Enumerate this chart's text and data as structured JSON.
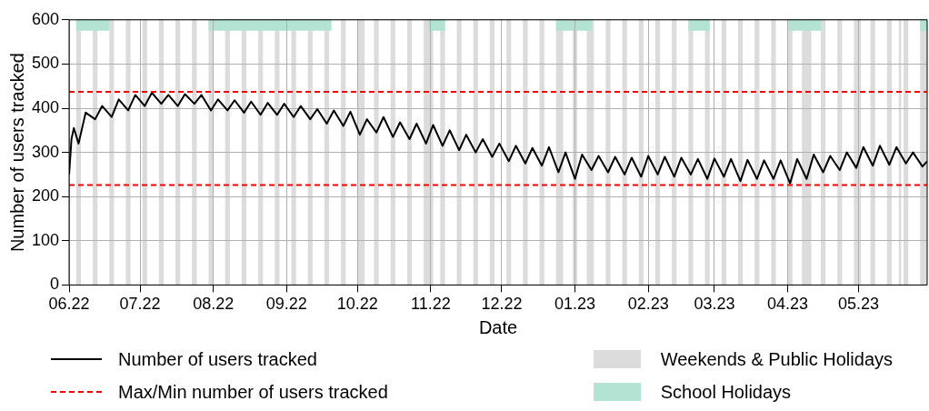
{
  "chart_data": {
    "type": "line",
    "xlabel": "Date",
    "ylabel": "Number of users tracked",
    "xlim": [
      "2022-06-01",
      "2023-05-30"
    ],
    "ylim": [
      0,
      600
    ],
    "yticks": [
      0,
      100,
      200,
      300,
      400,
      500,
      600
    ],
    "xticks": [
      {
        "value": "2022-06-01",
        "label": "06.22"
      },
      {
        "value": "2022-07-01",
        "label": "07.22"
      },
      {
        "value": "2022-08-01",
        "label": "08.22"
      },
      {
        "value": "2022-09-01",
        "label": "09.22"
      },
      {
        "value": "2022-10-01",
        "label": "10.22"
      },
      {
        "value": "2022-11-01",
        "label": "11.22"
      },
      {
        "value": "2022-12-01",
        "label": "12.22"
      },
      {
        "value": "2023-01-01",
        "label": "01.23"
      },
      {
        "value": "2023-02-01",
        "label": "02.23"
      },
      {
        "value": "2023-03-01",
        "label": "03.23"
      },
      {
        "value": "2023-04-01",
        "label": "04.23"
      },
      {
        "value": "2023-05-01",
        "label": "05.23"
      }
    ],
    "grid": true,
    "legend": "bottom",
    "marker": "none",
    "line_style": "solid",
    "series": [
      {
        "name": "Number of users tracked",
        "color": "#000000",
        "x": [
          "2022-06-01",
          "2022-06-02",
          "2022-06-03",
          "2022-06-05",
          "2022-06-08",
          "2022-06-12",
          "2022-06-15",
          "2022-06-19",
          "2022-06-22",
          "2022-06-26",
          "2022-06-29",
          "2022-07-03",
          "2022-07-06",
          "2022-07-10",
          "2022-07-13",
          "2022-07-17",
          "2022-07-20",
          "2022-07-24",
          "2022-07-27",
          "2022-07-31",
          "2022-08-03",
          "2022-08-07",
          "2022-08-10",
          "2022-08-14",
          "2022-08-17",
          "2022-08-21",
          "2022-08-24",
          "2022-08-28",
          "2022-08-31",
          "2022-09-04",
          "2022-09-07",
          "2022-09-11",
          "2022-09-14",
          "2022-09-18",
          "2022-09-21",
          "2022-09-25",
          "2022-09-28",
          "2022-10-02",
          "2022-10-05",
          "2022-10-09",
          "2022-10-12",
          "2022-10-16",
          "2022-10-19",
          "2022-10-23",
          "2022-10-26",
          "2022-10-30",
          "2022-11-02",
          "2022-11-06",
          "2022-11-09",
          "2022-11-13",
          "2022-11-16",
          "2022-11-20",
          "2022-11-23",
          "2022-11-27",
          "2022-11-30",
          "2022-12-04",
          "2022-12-07",
          "2022-12-11",
          "2022-12-14",
          "2022-12-18",
          "2022-12-21",
          "2022-12-25",
          "2022-12-28",
          "2023-01-01",
          "2023-01-04",
          "2023-01-08",
          "2023-01-11",
          "2023-01-15",
          "2023-01-18",
          "2023-01-22",
          "2023-01-25",
          "2023-01-29",
          "2023-02-01",
          "2023-02-05",
          "2023-02-08",
          "2023-02-12",
          "2023-02-15",
          "2023-02-19",
          "2023-02-22",
          "2023-02-26",
          "2023-03-01",
          "2023-03-05",
          "2023-03-08",
          "2023-03-12",
          "2023-03-15",
          "2023-03-19",
          "2023-03-22",
          "2023-03-26",
          "2023-03-29",
          "2023-04-02",
          "2023-04-05",
          "2023-04-09",
          "2023-04-12",
          "2023-04-16",
          "2023-04-19",
          "2023-04-23",
          "2023-04-26",
          "2023-04-30",
          "2023-05-03",
          "2023-05-07",
          "2023-05-10",
          "2023-05-14",
          "2023-05-17",
          "2023-05-21",
          "2023-05-24",
          "2023-05-28",
          "2023-05-30"
        ],
        "values": [
          250,
          330,
          355,
          320,
          390,
          375,
          405,
          380,
          420,
          395,
          430,
          405,
          435,
          410,
          430,
          405,
          432,
          410,
          430,
          395,
          420,
          395,
          418,
          390,
          415,
          385,
          412,
          385,
          410,
          380,
          405,
          375,
          398,
          365,
          395,
          360,
          392,
          340,
          375,
          345,
          380,
          335,
          368,
          330,
          365,
          320,
          362,
          315,
          350,
          305,
          340,
          300,
          330,
          290,
          320,
          280,
          315,
          275,
          310,
          270,
          312,
          255,
          300,
          240,
          295,
          260,
          292,
          255,
          290,
          250,
          288,
          245,
          292,
          250,
          290,
          245,
          288,
          250,
          285,
          240,
          286,
          245,
          285,
          235,
          283,
          240,
          282,
          240,
          282,
          230,
          285,
          240,
          295,
          255,
          292,
          260,
          300,
          265,
          312,
          270,
          315,
          272,
          312,
          275,
          300,
          268,
          280
        ]
      }
    ],
    "ref_lines": [
      {
        "axis": "y",
        "value": 437,
        "label": "Max/Min number of users tracked",
        "color": "#ff0000",
        "line_style": "dashed"
      },
      {
        "axis": "y",
        "value": 226,
        "color": "#ff0000",
        "line_style": "dashed"
      }
    ],
    "bands": [
      {
        "axis": "x",
        "from": "2022-06-04",
        "to": "2022-06-06",
        "label": "Weekends & Public Holidays",
        "color": "#dcdcdc"
      },
      {
        "axis": "x",
        "from": "2022-06-11",
        "to": "2022-06-13",
        "color": "#dcdcdc"
      },
      {
        "axis": "x",
        "from": "2022-06-18",
        "to": "2022-06-20",
        "color": "#dcdcdc"
      },
      {
        "axis": "x",
        "from": "2022-06-25",
        "to": "2022-06-27",
        "color": "#dcdcdc"
      },
      {
        "axis": "x",
        "from": "2022-07-02",
        "to": "2022-07-04",
        "color": "#dcdcdc"
      },
      {
        "axis": "x",
        "from": "2022-07-09",
        "to": "2022-07-11",
        "color": "#dcdcdc"
      },
      {
        "axis": "x",
        "from": "2022-07-16",
        "to": "2022-07-18",
        "color": "#dcdcdc"
      },
      {
        "axis": "x",
        "from": "2022-07-23",
        "to": "2022-07-25",
        "color": "#dcdcdc"
      },
      {
        "axis": "x",
        "from": "2022-07-30",
        "to": "2022-08-01",
        "color": "#dcdcdc"
      },
      {
        "axis": "x",
        "from": "2022-08-06",
        "to": "2022-08-08",
        "color": "#dcdcdc"
      },
      {
        "axis": "x",
        "from": "2022-08-13",
        "to": "2022-08-15",
        "color": "#dcdcdc"
      },
      {
        "axis": "x",
        "from": "2022-08-20",
        "to": "2022-08-22",
        "color": "#dcdcdc"
      },
      {
        "axis": "x",
        "from": "2022-08-27",
        "to": "2022-08-29",
        "color": "#dcdcdc"
      },
      {
        "axis": "x",
        "from": "2022-09-03",
        "to": "2022-09-05",
        "color": "#dcdcdc"
      },
      {
        "axis": "x",
        "from": "2022-09-10",
        "to": "2022-09-12",
        "color": "#dcdcdc"
      },
      {
        "axis": "x",
        "from": "2022-09-17",
        "to": "2022-09-19",
        "color": "#dcdcdc"
      },
      {
        "axis": "x",
        "from": "2022-09-24",
        "to": "2022-09-26",
        "color": "#dcdcdc"
      },
      {
        "axis": "x",
        "from": "2022-10-01",
        "to": "2022-10-04",
        "color": "#dcdcdc"
      },
      {
        "axis": "x",
        "from": "2022-10-08",
        "to": "2022-10-10",
        "color": "#dcdcdc"
      },
      {
        "axis": "x",
        "from": "2022-10-15",
        "to": "2022-10-17",
        "color": "#dcdcdc"
      },
      {
        "axis": "x",
        "from": "2022-10-22",
        "to": "2022-10-24",
        "color": "#dcdcdc"
      },
      {
        "axis": "x",
        "from": "2022-10-29",
        "to": "2022-11-02",
        "color": "#dcdcdc"
      },
      {
        "axis": "x",
        "from": "2022-11-05",
        "to": "2022-11-07",
        "color": "#dcdcdc"
      },
      {
        "axis": "x",
        "from": "2022-11-12",
        "to": "2022-11-14",
        "color": "#dcdcdc"
      },
      {
        "axis": "x",
        "from": "2022-11-19",
        "to": "2022-11-21",
        "color": "#dcdcdc"
      },
      {
        "axis": "x",
        "from": "2022-11-26",
        "to": "2022-11-28",
        "color": "#dcdcdc"
      },
      {
        "axis": "x",
        "from": "2022-12-03",
        "to": "2022-12-05",
        "color": "#dcdcdc"
      },
      {
        "axis": "x",
        "from": "2022-12-10",
        "to": "2022-12-12",
        "color": "#dcdcdc"
      },
      {
        "axis": "x",
        "from": "2022-12-17",
        "to": "2022-12-19",
        "color": "#dcdcdc"
      },
      {
        "axis": "x",
        "from": "2022-12-24",
        "to": "2022-12-27",
        "color": "#dcdcdc"
      },
      {
        "axis": "x",
        "from": "2022-12-31",
        "to": "2023-01-02",
        "color": "#dcdcdc"
      },
      {
        "axis": "x",
        "from": "2023-01-06",
        "to": "2023-01-09",
        "color": "#dcdcdc"
      },
      {
        "axis": "x",
        "from": "2023-01-14",
        "to": "2023-01-16",
        "color": "#dcdcdc"
      },
      {
        "axis": "x",
        "from": "2023-01-21",
        "to": "2023-01-23",
        "color": "#dcdcdc"
      },
      {
        "axis": "x",
        "from": "2023-01-28",
        "to": "2023-01-30",
        "color": "#dcdcdc"
      },
      {
        "axis": "x",
        "from": "2023-02-04",
        "to": "2023-02-06",
        "color": "#dcdcdc"
      },
      {
        "axis": "x",
        "from": "2023-02-11",
        "to": "2023-02-13",
        "color": "#dcdcdc"
      },
      {
        "axis": "x",
        "from": "2023-02-18",
        "to": "2023-02-20",
        "color": "#dcdcdc"
      },
      {
        "axis": "x",
        "from": "2023-02-25",
        "to": "2023-02-27",
        "color": "#dcdcdc"
      },
      {
        "axis": "x",
        "from": "2023-03-04",
        "to": "2023-03-06",
        "color": "#dcdcdc"
      },
      {
        "axis": "x",
        "from": "2023-03-11",
        "to": "2023-03-13",
        "color": "#dcdcdc"
      },
      {
        "axis": "x",
        "from": "2023-03-18",
        "to": "2023-03-20",
        "color": "#dcdcdc"
      },
      {
        "axis": "x",
        "from": "2023-03-25",
        "to": "2023-03-27",
        "color": "#dcdcdc"
      },
      {
        "axis": "x",
        "from": "2023-04-01",
        "to": "2023-04-03",
        "color": "#dcdcdc"
      },
      {
        "axis": "x",
        "from": "2023-04-07",
        "to": "2023-04-11",
        "color": "#dcdcdc"
      },
      {
        "axis": "x",
        "from": "2023-04-15",
        "to": "2023-04-17",
        "color": "#dcdcdc"
      },
      {
        "axis": "x",
        "from": "2023-04-22",
        "to": "2023-04-24",
        "color": "#dcdcdc"
      },
      {
        "axis": "x",
        "from": "2023-04-29",
        "to": "2023-05-02",
        "color": "#dcdcdc"
      },
      {
        "axis": "x",
        "from": "2023-05-06",
        "to": "2023-05-08",
        "color": "#dcdcdc"
      },
      {
        "axis": "x",
        "from": "2023-05-13",
        "to": "2023-05-15",
        "color": "#dcdcdc"
      },
      {
        "axis": "x",
        "from": "2023-05-18",
        "to": "2023-05-19",
        "color": "#dcdcdc"
      },
      {
        "axis": "x",
        "from": "2023-05-20",
        "to": "2023-05-22",
        "color": "#dcdcdc"
      },
      {
        "axis": "x",
        "from": "2023-05-27",
        "to": "2023-05-30",
        "color": "#dcdcdc"
      },
      {
        "axis": "x",
        "from": "2022-06-04",
        "to": "2022-06-18",
        "label": "School Holidays",
        "color": "#b3e3d3"
      },
      {
        "axis": "x",
        "from": "2022-07-30",
        "to": "2022-09-20",
        "color": "#b3e3d3"
      },
      {
        "axis": "x",
        "from": "2022-10-31",
        "to": "2022-11-07",
        "color": "#b3e3d3"
      },
      {
        "axis": "x",
        "from": "2022-12-24",
        "to": "2023-01-08",
        "color": "#b3e3d3"
      },
      {
        "axis": "x",
        "from": "2023-02-18",
        "to": "2023-02-27",
        "color": "#b3e3d3"
      },
      {
        "axis": "x",
        "from": "2023-04-01",
        "to": "2023-04-15",
        "color": "#b3e3d3"
      },
      {
        "axis": "x",
        "from": "2023-05-27",
        "to": "2023-05-30",
        "color": "#b3e3d3"
      }
    ]
  }
}
